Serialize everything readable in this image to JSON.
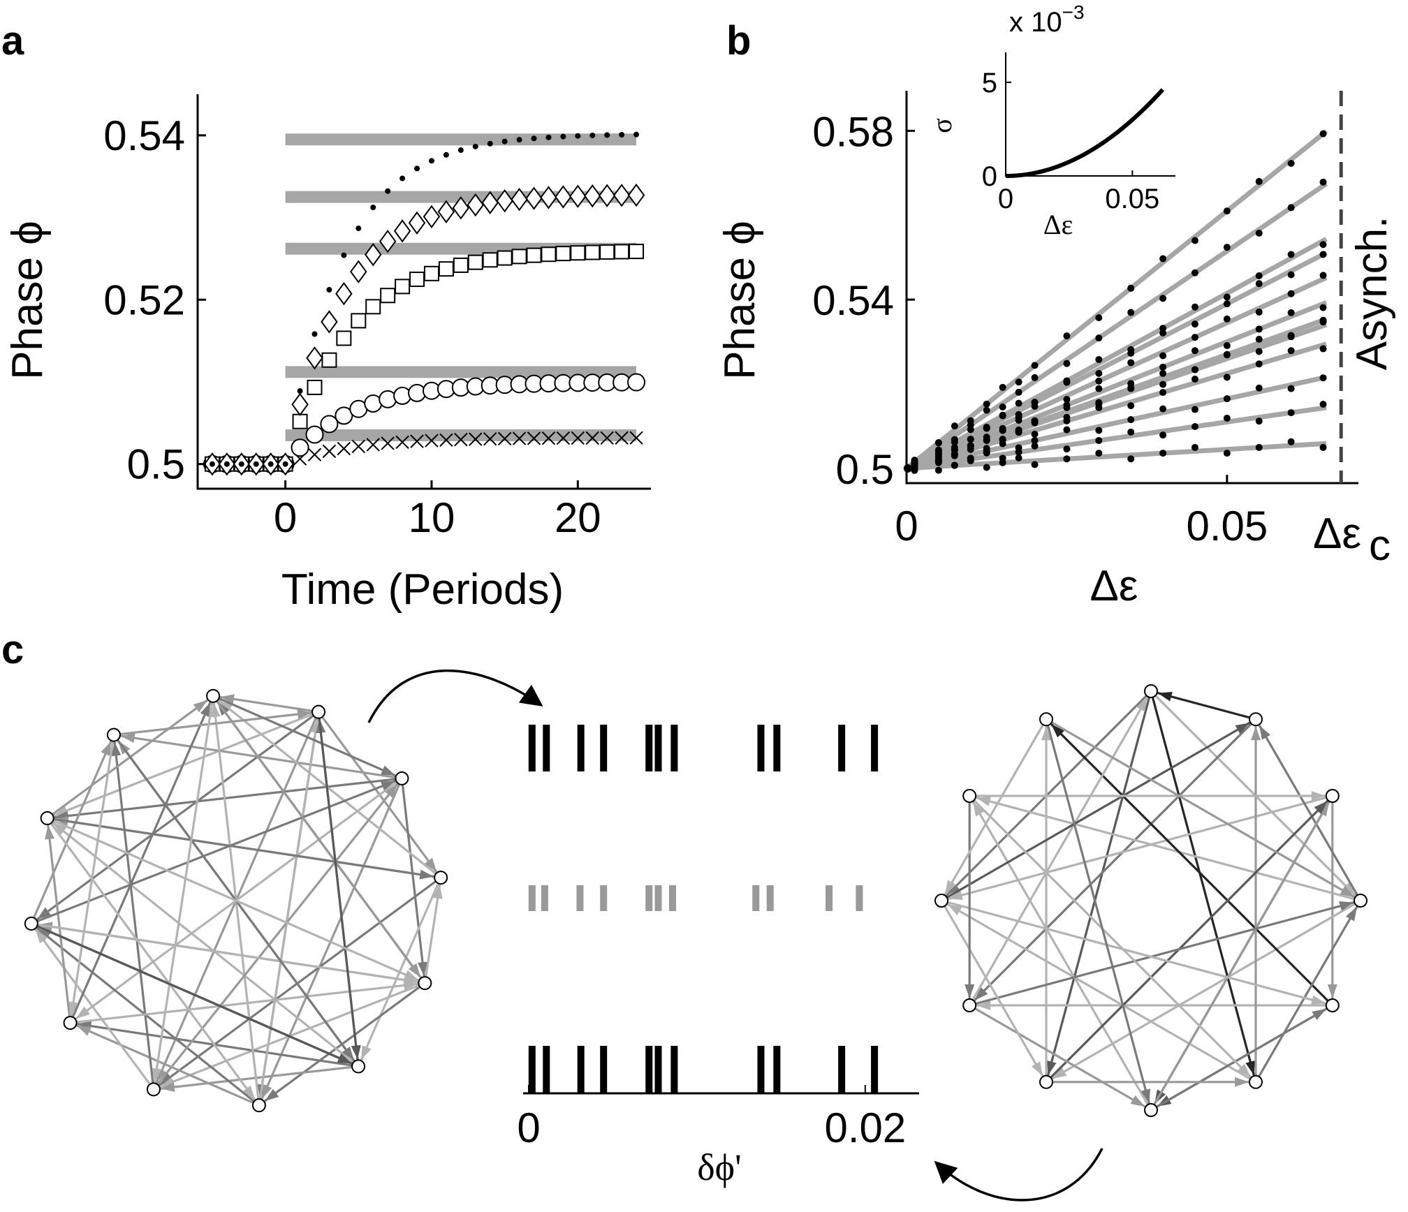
{
  "panels": {
    "a": "a",
    "b": "b",
    "c": "c"
  },
  "chart_data": [
    {
      "panel": "a",
      "type": "scatter",
      "xlabel": "Time (Periods)",
      "ylabel": "Phase ϕ",
      "xlim": [
        -6,
        25
      ],
      "ylim": [
        0.497,
        0.545
      ],
      "xticks": [
        0,
        10,
        20
      ],
      "yticks": [
        0.5,
        0.52,
        0.54
      ],
      "ytick_labels": [
        "0.5",
        "0.52",
        "0.54"
      ],
      "grid": false,
      "target_lines": [
        {
          "y": 0.5395,
          "x_from": 0,
          "x_to": 24
        },
        {
          "y": 0.5325,
          "x_from": 0,
          "x_to": 24
        },
        {
          "y": 0.5262,
          "x_from": 0,
          "x_to": 24
        },
        {
          "y": 0.5112,
          "x_from": 0,
          "x_to": 24
        },
        {
          "y": 0.5035,
          "x_from": 0,
          "x_to": 24
        }
      ],
      "series": [
        {
          "marker": "dot",
          "start": 0.5,
          "target": 0.5402,
          "tau": 4.0
        },
        {
          "marker": "diamond",
          "start": 0.5,
          "target": 0.5328,
          "tau": 4.0
        },
        {
          "marker": "square",
          "start": 0.5,
          "target": 0.526,
          "tau": 4.5
        },
        {
          "marker": "circle",
          "start": 0.5,
          "target": 0.51,
          "tau": 4.5
        },
        {
          "marker": "cross",
          "start": 0.5,
          "target": 0.5032,
          "tau": 4.5
        }
      ],
      "x_pre": [
        -5,
        -4,
        -3,
        -2,
        -1,
        0
      ],
      "x_post": [
        1,
        2,
        3,
        4,
        5,
        6,
        7,
        8,
        9,
        10,
        11,
        12,
        13,
        14,
        15,
        16,
        17,
        18,
        19,
        20,
        21,
        22,
        23,
        24
      ]
    },
    {
      "panel": "b",
      "type": "scatter",
      "xlabel": "Δε",
      "ylabel": "Phase ϕ",
      "xlim": [
        0,
        0.0705
      ],
      "ylim": [
        0.4965,
        0.5895
      ],
      "xticks": [
        0,
        0.05
      ],
      "xtick_labels": [
        "0",
        "0.05"
      ],
      "yticks": [
        0.5,
        0.54,
        0.58
      ],
      "ytick_labels": [
        "0.5",
        "0.54",
        "0.58"
      ],
      "critical_label": "Δε",
      "critical_sub": "c",
      "critical_x": 0.0678,
      "async_label": "Asynch.",
      "fit_slopes": [
        1.22,
        1.03,
        0.83,
        0.78,
        0.69,
        0.6,
        0.54,
        0.52,
        0.45,
        0.33,
        0.22,
        0.09
      ],
      "x_samples": [
        0.00125,
        0.005,
        0.0075,
        0.01,
        0.0125,
        0.015,
        0.0175,
        0.02,
        0.025,
        0.03,
        0.035,
        0.04,
        0.045,
        0.05,
        0.055,
        0.06,
        0.065
      ],
      "inset": {
        "exponent_label": "x 10",
        "exponent_power": "−3",
        "ylabel": "σ",
        "xlabel": "Δε",
        "xticks": [
          0,
          0.05
        ],
        "xtick_labels": [
          "0",
          "0.05"
        ],
        "yticks": [
          0,
          5
        ],
        "ytick_labels": [
          "0",
          "5"
        ],
        "xlim": [
          0,
          0.067
        ],
        "ylim": [
          0,
          6.6
        ],
        "curve_coeff": 1200,
        "curve_power": 2,
        "curve_xmax": 0.062
      }
    },
    {
      "panel": "c",
      "type": "raster",
      "xlabel": "δϕ'",
      "xlim": [
        0,
        0.0215
      ],
      "xticks": [
        0,
        0.02
      ],
      "xtick_labels": [
        "0",
        "0.02"
      ],
      "rows": [
        {
          "color": "#000000",
          "spikes": [
            0.0002,
            0.00105,
            0.0031,
            0.00445,
            0.00715,
            0.0077,
            0.00865,
            0.0138,
            0.01475,
            0.0186,
            0.02055
          ]
        },
        {
          "color": "#999999",
          "spikes": [
            0.0002,
            0.00095,
            0.00305,
            0.00445,
            0.00715,
            0.0077,
            0.00855,
            0.0135,
            0.01435,
            0.01785,
            0.01965
          ]
        },
        {
          "color": "#000000",
          "spikes": [
            0.0002,
            0.00105,
            0.0031,
            0.00445,
            0.00715,
            0.0077,
            0.00865,
            0.0138,
            0.01475,
            0.0186,
            0.02055
          ]
        }
      ],
      "networks": {
        "left_nodes": 12,
        "right_nodes": 12,
        "edge_colors": [
          "#b3b3b3",
          "#999999",
          "#7a7a7a",
          "#595959",
          "#262626"
        ]
      }
    }
  ]
}
